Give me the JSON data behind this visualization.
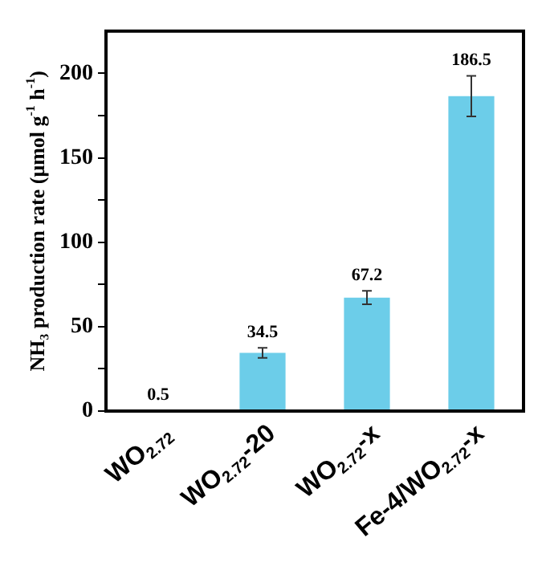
{
  "chart_data": {
    "type": "bar",
    "ylabel": "NH₃ production rate (μmol g$^{-1}$ h$^{-1}$)",
    "categories": [
      "WO$_{2.72}$",
      "WO$_{2.72}$-20",
      "WO$_{2.72}$-x",
      "Fe-4/WO$_{2.72}$-x"
    ],
    "values": [
      0.5,
      34.5,
      67.2,
      186.5
    ],
    "errors": [
      null,
      3,
      4,
      12
    ],
    "color": "#6ccde9",
    "data_labels": true,
    "ylim": [
      0,
      225
    ],
    "yticks": [
      0,
      {
        "value": 25,
        "label": null
      },
      50,
      {
        "value": 75,
        "label": null
      },
      100,
      {
        "value": 125,
        "label": null
      },
      150,
      {
        "value": 175,
        "label": null
      },
      200
    ]
  }
}
